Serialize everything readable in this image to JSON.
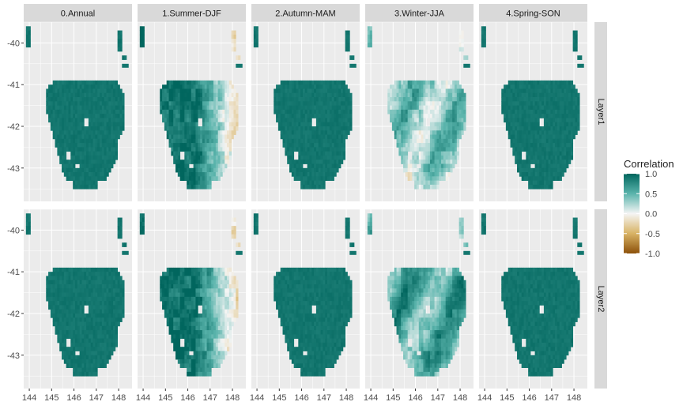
{
  "chart_data": {
    "type": "heatmap",
    "facet_columns": [
      "0.Annual",
      "1.Summer-DJF",
      "2.Autumn-MAM",
      "3.Winter-JJA",
      "4.Spring-SON"
    ],
    "facet_rows": [
      "Layer1",
      "Layer2"
    ],
    "x_ticks": [
      "144",
      "145",
      "146",
      "147",
      "148"
    ],
    "x_tick_values": [
      144,
      145,
      146,
      147,
      148
    ],
    "y_ticks": [
      "-40",
      "-41",
      "-42",
      "-43"
    ],
    "y_tick_values": [
      -40,
      -41,
      -42,
      -43
    ],
    "xlim": [
      143.75,
      148.6
    ],
    "ylim": [
      -43.8,
      -39.5
    ],
    "legend": {
      "title": "Correlation",
      "ticks": [
        "1.0",
        "0.5",
        "0.0",
        "-0.5",
        "-1.0"
      ],
      "tick_values": [
        1.0,
        0.5,
        0.0,
        -0.5,
        -1.0
      ],
      "range": [
        -1.0,
        1.0
      ],
      "placement": "right"
    },
    "panel_patterns": {
      "0.Annual|Layer1": "uniform-high",
      "0.Annual|Layer2": "uniform-high",
      "1.Summer-DJF|Layer1": "high-west-low-east",
      "1.Summer-DJF|Layer2": "high-west-low-east",
      "2.Autumn-MAM|Layer1": "uniform-high",
      "2.Autumn-MAM|Layer2": "uniform-high",
      "3.Winter-JJA|Layer1": "mixed-low",
      "3.Winter-JJA|Layer2": "mixed-moderate",
      "4.Spring-SON|Layer1": "uniform-high",
      "4.Spring-SON|Layer2": "uniform-high"
    },
    "panel_mean_correlation": {
      "0.Annual|Layer1": 0.92,
      "0.Annual|Layer2": 0.93,
      "1.Summer-DJF|Layer1": 0.6,
      "1.Summer-DJF|Layer2": 0.62,
      "2.Autumn-MAM|Layer1": 0.92,
      "2.Autumn-MAM|Layer2": 0.93,
      "3.Winter-JJA|Layer1": 0.35,
      "3.Winter-JJA|Layer2": 0.5,
      "4.Spring-SON|Layer1": 0.93,
      "4.Spring-SON|Layer2": 0.94
    },
    "colors": {
      "high": "#01665e",
      "mid_high": "#5ab4ac",
      "zero": "#f5f5f5",
      "mid_low": "#d8b365",
      "low": "#8c510a",
      "panel_bg": "#ebebeb",
      "strip_bg": "#d9d9d9",
      "grid": "#ffffff"
    }
  }
}
